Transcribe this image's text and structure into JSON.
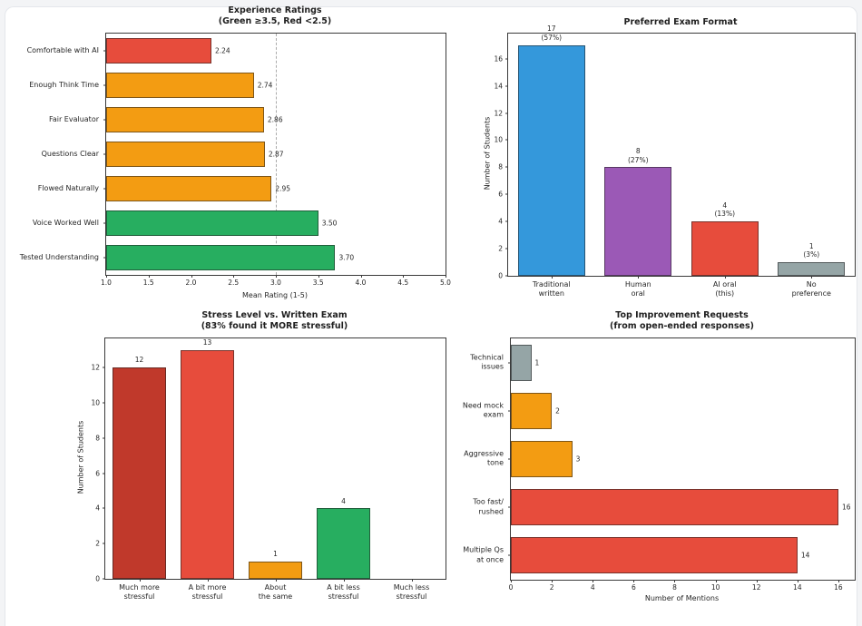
{
  "page": {
    "background_color": "#f3f4f6",
    "card_color": "#ffffff"
  },
  "chart_data": [
    {
      "id": "experience-ratings",
      "type": "bar",
      "orientation": "horizontal",
      "title": "Experience Ratings",
      "subtitle": "(Green ≥3.5, Red <2.5)",
      "categories": [
        "Comfortable with AI",
        "Enough Think Time",
        "Fair Evaluator",
        "Questions Clear",
        "Flowed Naturally",
        "Voice Worked Well",
        "Tested Understanding"
      ],
      "values": [
        2.24,
        2.74,
        2.86,
        2.87,
        2.95,
        3.5,
        3.7
      ],
      "value_labels": [
        "2.24",
        "2.74",
        "2.86",
        "2.87",
        "2.95",
        "3.50",
        "3.70"
      ],
      "bar_colors": [
        "#e74c3c",
        "#f39c12",
        "#f39c12",
        "#f39c12",
        "#f39c12",
        "#27ae60",
        "#27ae60"
      ],
      "xlabel": "Mean Rating (1-5)",
      "xlim": [
        1.0,
        5.0
      ],
      "xticks": [
        "1.0",
        "1.5",
        "2.0",
        "2.5",
        "3.0",
        "3.5",
        "4.0",
        "4.5",
        "5.0"
      ],
      "grid": false,
      "reference_line": {
        "x": 3.0,
        "style": "dashed",
        "color": "#ababab"
      }
    },
    {
      "id": "preferred-exam-format",
      "type": "bar",
      "orientation": "vertical",
      "title": "Preferred Exam Format",
      "categories": [
        "Traditional\nwritten",
        "Human\noral",
        "AI oral\n(this)",
        "No\npreference"
      ],
      "values": [
        17,
        8,
        4,
        1
      ],
      "value_labels": [
        "17\n(57%)",
        "8\n(27%)",
        "4\n(13%)",
        "1\n(3%)"
      ],
      "bar_colors": [
        "#3498db",
        "#9b59b6",
        "#e74c3c",
        "#95a5a6"
      ],
      "ylabel": "Number of Students",
      "ylim": [
        0,
        17.85
      ],
      "yticks": [
        0,
        2,
        4,
        6,
        8,
        10,
        12,
        14,
        16
      ],
      "grid": false
    },
    {
      "id": "stress-level-vs-written-exam",
      "type": "bar",
      "orientation": "vertical",
      "title": "Stress Level vs. Written Exam",
      "subtitle": "(83% found it MORE stressful)",
      "categories": [
        "Much more\nstressful",
        "A bit more\nstressful",
        "About\nthe same",
        "A bit less\nstressful",
        "Much less\nstressful"
      ],
      "values": [
        12,
        13,
        1,
        4,
        0
      ],
      "value_labels": [
        "12",
        "13",
        "1",
        "4",
        ""
      ],
      "bar_colors": [
        "#c0392b",
        "#e74c3c",
        "#f39c12",
        "#27ae60",
        "#95a5a6"
      ],
      "ylabel": "Number of Students",
      "ylim": [
        0,
        13.65
      ],
      "yticks": [
        0,
        2,
        4,
        6,
        8,
        10,
        12
      ],
      "grid": false
    },
    {
      "id": "top-improvement-requests",
      "type": "bar",
      "orientation": "horizontal",
      "title": "Top Improvement Requests",
      "subtitle": "(from open-ended responses)",
      "categories": [
        "Technical\nissues",
        "Need mock\nexam",
        "Aggressive\ntone",
        "Too fast/\nrushed",
        "Multiple Qs\nat once"
      ],
      "values": [
        1,
        2,
        3,
        16,
        14
      ],
      "value_labels": [
        "1",
        "2",
        "3",
        "16",
        "14"
      ],
      "bar_colors": [
        "#95a5a6",
        "#f39c12",
        "#f39c12",
        "#e74c3c",
        "#e74c3c"
      ],
      "xlabel": "Number of Mentions",
      "xlim": [
        0,
        16.8
      ],
      "xticks": [
        0,
        2,
        4,
        6,
        8,
        10,
        12,
        14,
        16
      ],
      "grid": false
    }
  ]
}
